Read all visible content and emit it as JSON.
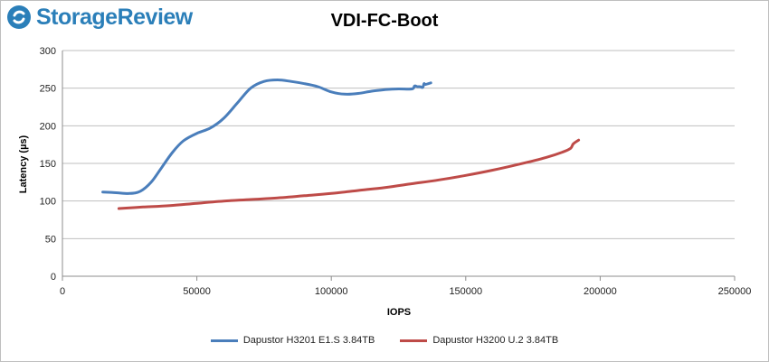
{
  "logo": {
    "text": "StorageReview"
  },
  "chart_data": {
    "type": "line",
    "title": "VDI-FC-Boot",
    "xlabel": "IOPS",
    "ylabel": "Latency (µs)",
    "xlim": [
      0,
      250000
    ],
    "ylim": [
      0,
      300
    ],
    "xticks": [
      0,
      50000,
      100000,
      150000,
      200000,
      250000
    ],
    "yticks": [
      0,
      50,
      100,
      150,
      200,
      250,
      300
    ],
    "grid": "horizontal",
    "legend_position": "bottom",
    "series": [
      {
        "name": "Dapustor H3201 E1.S 3.84TB",
        "color": "#4a7ebb",
        "x": [
          15000,
          20000,
          25000,
          29000,
          33000,
          37000,
          41000,
          45000,
          50000,
          55000,
          60000,
          65000,
          70000,
          75000,
          80000,
          85000,
          90000,
          95000,
          100000,
          105000,
          110000,
          115000,
          120000,
          125000,
          130000,
          131000,
          132000,
          133000,
          134000,
          134500,
          135000,
          137000
        ],
        "y": [
          112,
          111,
          110,
          113,
          125,
          145,
          165,
          180,
          190,
          197,
          210,
          230,
          250,
          259,
          261,
          259,
          256,
          252,
          245,
          242,
          243,
          246,
          248,
          249,
          249,
          253,
          252,
          252,
          251,
          256,
          255,
          257
        ]
      },
      {
        "name": "Dapustor H3200 U.2 3.84TB",
        "color": "#be4b48",
        "x": [
          21000,
          30000,
          40000,
          50000,
          60000,
          70000,
          80000,
          90000,
          100000,
          110000,
          120000,
          130000,
          140000,
          150000,
          160000,
          170000,
          180000,
          186000,
          189000,
          190000,
          192000
        ],
        "y": [
          90,
          92,
          94,
          97,
          100,
          102,
          104,
          107,
          110,
          114,
          118,
          123,
          128,
          134,
          141,
          149,
          158,
          165,
          170,
          176,
          181
        ]
      }
    ]
  }
}
